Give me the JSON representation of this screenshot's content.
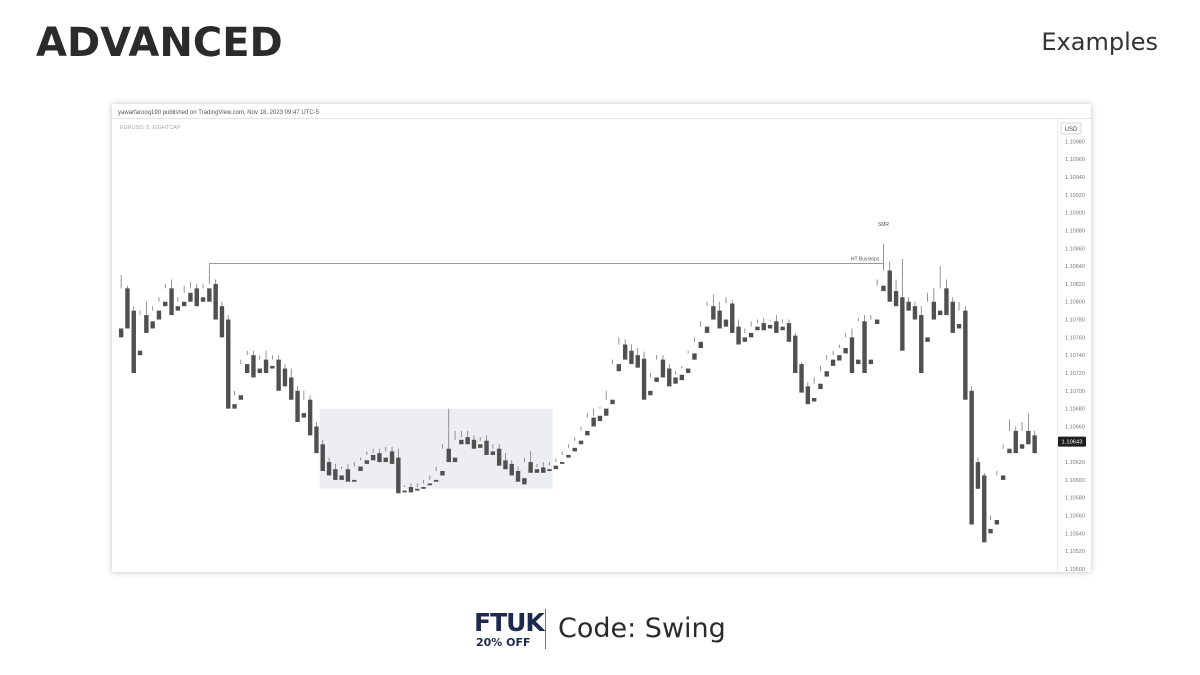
{
  "header": {
    "title": "ADVANCED",
    "subtitle": "Examples"
  },
  "chart": {
    "published_line": "yawarfarooq190 published on TradingView.com, Nov 18, 2023 09:47 UTC-5",
    "symbol_line": "EURUSD, 5, EIGHTCAP",
    "currency": "USD",
    "last_price": "1.10643",
    "annotations": {
      "level_top": "SMR",
      "level_line": "HT Buystops"
    }
  },
  "chart_data": {
    "type": "candlestick",
    "y_ticks": [
      1.1098,
      1.1096,
      1.1094,
      1.1092,
      1.109,
      1.1088,
      1.1086,
      1.1084,
      1.1082,
      1.108,
      1.1078,
      1.1076,
      1.1074,
      1.1072,
      1.107,
      1.1068,
      1.1066,
      1.1064,
      1.1062,
      1.106,
      1.1058,
      1.1056,
      1.1054,
      1.1052,
      1.105
    ],
    "ylim": [
      1.105,
      1.10995
    ],
    "last_price": 1.10643,
    "buystops_level": 1.10843,
    "highlight_zone": {
      "from_index": 32,
      "to_index": 68,
      "low": 1.1059,
      "high": 1.1068
    },
    "colors": {
      "up": "#5b9e8e",
      "down": "#505050",
      "wick": "#7a7a7a",
      "zone": "#eceef3"
    },
    "candles": [
      [
        1.1077,
        1.1083,
        1.10815,
        1.1076
      ],
      [
        1.10815,
        1.10818,
        1.1079,
        1.1077
      ],
      [
        1.1079,
        1.10795,
        1.10745,
        1.1072
      ],
      [
        1.10745,
        1.1079,
        1.10785,
        1.1074
      ],
      [
        1.10785,
        1.108,
        1.10778,
        1.10765
      ],
      [
        1.10778,
        1.10795,
        1.1079,
        1.1077
      ],
      [
        1.1079,
        1.10805,
        1.108,
        1.1078
      ],
      [
        1.108,
        1.1082,
        1.10815,
        1.10795
      ],
      [
        1.10815,
        1.10825,
        1.10795,
        1.10785
      ],
      [
        1.10795,
        1.10805,
        1.108,
        1.1079
      ],
      [
        1.108,
        1.10818,
        1.1081,
        1.10795
      ],
      [
        1.1081,
        1.10822,
        1.10815,
        1.108
      ],
      [
        1.10815,
        1.1082,
        1.10805,
        1.10795
      ],
      [
        1.10805,
        1.1082,
        1.10815,
        1.108
      ],
      [
        1.10815,
        1.1084,
        1.1082,
        1.108
      ],
      [
        1.1082,
        1.10825,
        1.10795,
        1.1078
      ],
      [
        1.10795,
        1.108,
        1.1078,
        1.1076
      ],
      [
        1.1078,
        1.10785,
        1.10685,
        1.1068
      ],
      [
        1.10685,
        1.107,
        1.10695,
        1.1068
      ],
      [
        1.10695,
        1.10735,
        1.1073,
        1.1069
      ],
      [
        1.1073,
        1.10745,
        1.1074,
        1.1072
      ],
      [
        1.1074,
        1.10745,
        1.10725,
        1.10715
      ],
      [
        1.10725,
        1.1074,
        1.10735,
        1.1072
      ],
      [
        1.10735,
        1.10745,
        1.10728,
        1.1072
      ],
      [
        1.10728,
        1.1074,
        1.10735,
        1.10725
      ],
      [
        1.10735,
        1.1074,
        1.10725,
        1.107
      ],
      [
        1.10725,
        1.1073,
        1.10715,
        1.10705
      ],
      [
        1.10715,
        1.10725,
        1.107,
        1.1069
      ],
      [
        1.107,
        1.10705,
        1.10675,
        1.10665
      ],
      [
        1.10675,
        1.107,
        1.1069,
        1.1067
      ],
      [
        1.1069,
        1.10695,
        1.1066,
        1.1065
      ],
      [
        1.1066,
        1.10665,
        1.1064,
        1.1063
      ],
      [
        1.1064,
        1.10645,
        1.1062,
        1.1061
      ],
      [
        1.1062,
        1.10625,
        1.10612,
        1.10605
      ],
      [
        1.10612,
        1.10618,
        1.10605,
        1.106
      ],
      [
        1.10605,
        1.10615,
        1.10612,
        1.106
      ],
      [
        1.10612,
        1.10618,
        1.106,
        1.10598
      ],
      [
        1.106,
        1.1062,
        1.10615,
        1.10598
      ],
      [
        1.10615,
        1.10625,
        1.10622,
        1.1061
      ],
      [
        1.10622,
        1.10632,
        1.10628,
        1.10618
      ],
      [
        1.10628,
        1.10635,
        1.1063,
        1.10622
      ],
      [
        1.1063,
        1.10635,
        1.10625,
        1.1062
      ],
      [
        1.10625,
        1.10637,
        1.10632,
        1.1062
      ],
      [
        1.10632,
        1.10637,
        1.10625,
        1.10618
      ],
      [
        1.10625,
        1.10635,
        1.10588,
        1.10585
      ],
      [
        1.10588,
        1.10594,
        1.10592,
        1.10586
      ],
      [
        1.10592,
        1.10596,
        1.1059,
        1.10586
      ],
      [
        1.1059,
        1.10596,
        1.10592,
        1.10588
      ],
      [
        1.10592,
        1.106,
        1.10596,
        1.1059
      ],
      [
        1.10596,
        1.10605,
        1.106,
        1.10594
      ],
      [
        1.106,
        1.10615,
        1.1061,
        1.10598
      ],
      [
        1.1061,
        1.1064,
        1.10635,
        1.10605
      ],
      [
        1.10635,
        1.1068,
        1.10625,
        1.1062
      ],
      [
        1.10625,
        1.10655,
        1.10645,
        1.1062
      ],
      [
        1.10645,
        1.10655,
        1.10648,
        1.1064
      ],
      [
        1.10648,
        1.10655,
        1.10645,
        1.1064
      ],
      [
        1.10645,
        1.1065,
        1.1064,
        1.10635
      ],
      [
        1.1064,
        1.10648,
        1.10644,
        1.10636
      ],
      [
        1.10644,
        1.1065,
        1.10632,
        1.10628
      ],
      [
        1.10632,
        1.1064,
        1.10635,
        1.10628
      ],
      [
        1.10635,
        1.1064,
        1.10622,
        1.10616
      ],
      [
        1.10622,
        1.1063,
        1.10618,
        1.10612
      ],
      [
        1.10618,
        1.10622,
        1.1061,
        1.10605
      ],
      [
        1.1061,
        1.10615,
        1.10602,
        1.10598
      ],
      [
        1.10602,
        1.10625,
        1.1062,
        1.10595
      ],
      [
        1.1062,
        1.10632,
        1.10612,
        1.10608
      ],
      [
        1.10612,
        1.10618,
        1.10614,
        1.10608
      ],
      [
        1.10614,
        1.1062,
        1.10612,
        1.10608
      ],
      [
        1.10612,
        1.1062,
        1.10616,
        1.1061
      ],
      [
        1.10616,
        1.10624,
        1.1062,
        1.10612
      ],
      [
        1.1062,
        1.10632,
        1.10628,
        1.10618
      ],
      [
        1.10628,
        1.1064,
        1.10636,
        1.10625
      ],
      [
        1.10636,
        1.10648,
        1.10644,
        1.10632
      ],
      [
        1.10644,
        1.1066,
        1.10655,
        1.1064
      ],
      [
        1.10655,
        1.10675,
        1.1067,
        1.1065
      ],
      [
        1.1067,
        1.1068,
        1.10672,
        1.1066
      ],
      [
        1.10672,
        1.10682,
        1.1068,
        1.10666
      ],
      [
        1.1068,
        1.107,
        1.1069,
        1.10672
      ],
      [
        1.1069,
        1.10735,
        1.1073,
        1.10685
      ],
      [
        1.1073,
        1.1076,
        1.10752,
        1.10722
      ],
      [
        1.10752,
        1.10758,
        1.10745,
        1.10735
      ],
      [
        1.10745,
        1.10752,
        1.1074,
        1.1073
      ],
      [
        1.1074,
        1.10748,
        1.10736,
        1.10726
      ],
      [
        1.10736,
        1.10744,
        1.107,
        1.1069
      ],
      [
        1.107,
        1.1072,
        1.10715,
        1.10695
      ],
      [
        1.10715,
        1.1074,
        1.10735,
        1.1071
      ],
      [
        1.10735,
        1.1074,
        1.10725,
        1.10715
      ],
      [
        1.10725,
        1.1073,
        1.10715,
        1.10705
      ],
      [
        1.10715,
        1.10722,
        1.10718,
        1.10708
      ],
      [
        1.10718,
        1.10728,
        1.10725,
        1.10712
      ],
      [
        1.10725,
        1.10745,
        1.10742,
        1.1072
      ],
      [
        1.10742,
        1.1076,
        1.10755,
        1.10735
      ],
      [
        1.10755,
        1.10778,
        1.10772,
        1.10748
      ],
      [
        1.10772,
        1.108,
        1.10795,
        1.10765
      ],
      [
        1.10795,
        1.10808,
        1.1079,
        1.1078
      ],
      [
        1.1079,
        1.108,
        1.1078,
        1.1077
      ],
      [
        1.1078,
        1.10805,
        1.10798,
        1.10772
      ],
      [
        1.10798,
        1.10802,
        1.10772,
        1.10765
      ],
      [
        1.10772,
        1.1078,
        1.1076,
        1.10752
      ],
      [
        1.1076,
        1.1077,
        1.10765,
        1.10755
      ],
      [
        1.10765,
        1.10778,
        1.10772,
        1.1076
      ],
      [
        1.10772,
        1.1078,
        1.10776,
        1.10768
      ],
      [
        1.10776,
        1.10782,
        1.10774,
        1.10768
      ],
      [
        1.10774,
        1.1078,
        1.10778,
        1.1077
      ],
      [
        1.10778,
        1.10785,
        1.10772,
        1.10765
      ],
      [
        1.10772,
        1.1078,
        1.10776,
        1.10768
      ],
      [
        1.10776,
        1.1078,
        1.10762,
        1.10755
      ],
      [
        1.10762,
        1.10765,
        1.1073,
        1.1072
      ],
      [
        1.1073,
        1.10732,
        1.10705,
        1.10698
      ],
      [
        1.10705,
        1.1071,
        1.10692,
        1.10685
      ],
      [
        1.10692,
        1.10715,
        1.10708,
        1.10688
      ],
      [
        1.10708,
        1.10728,
        1.10722,
        1.10702
      ],
      [
        1.10722,
        1.1074,
        1.10735,
        1.10716
      ],
      [
        1.10735,
        1.10745,
        1.1074,
        1.10728
      ],
      [
        1.1074,
        1.10752,
        1.10748,
        1.10734
      ],
      [
        1.10748,
        1.10765,
        1.1076,
        1.10742
      ],
      [
        1.1076,
        1.1077,
        1.10735,
        1.1072
      ],
      [
        1.10735,
        1.10782,
        1.10778,
        1.1073
      ],
      [
        1.10778,
        1.10785,
        1.10735,
        1.1072
      ],
      [
        1.10735,
        1.10785,
        1.1078,
        1.1073
      ],
      [
        1.1078,
        1.10825,
        1.10818,
        1.10775
      ],
      [
        1.10818,
        1.10865,
        1.10835,
        1.10812
      ],
      [
        1.10835,
        1.10845,
        1.10812,
        1.108
      ],
      [
        1.10812,
        1.10825,
        1.10805,
        1.10795
      ],
      [
        1.10805,
        1.10848,
        1.108,
        1.10745
      ],
      [
        1.108,
        1.10805,
        1.10795,
        1.1079
      ],
      [
        1.10795,
        1.108,
        1.10785,
        1.1078
      ],
      [
        1.10785,
        1.10795,
        1.1076,
        1.1072
      ],
      [
        1.1076,
        1.1081,
        1.108,
        1.10755
      ],
      [
        1.108,
        1.10815,
        1.1079,
        1.1078
      ],
      [
        1.1079,
        1.1084,
        1.10815,
        1.10785
      ],
      [
        1.10815,
        1.10825,
        1.108,
        1.10785
      ],
      [
        1.108,
        1.10805,
        1.10775,
        1.10765
      ],
      [
        1.10775,
        1.108,
        1.1079,
        1.1077
      ],
      [
        1.1079,
        1.10795,
        1.107,
        1.1069
      ],
      [
        1.107,
        1.10705,
        1.1062,
        1.1055
      ],
      [
        1.1062,
        1.10625,
        1.10605,
        1.1059
      ],
      [
        1.10605,
        1.10608,
        1.10545,
        1.1053
      ],
      [
        1.10545,
        1.1056,
        1.10555,
        1.1054
      ],
      [
        1.10555,
        1.1061,
        1.10605,
        1.1055
      ],
      [
        1.10605,
        1.1064,
        1.10635,
        1.106
      ],
      [
        1.10635,
        1.10668,
        1.10655,
        1.1063
      ],
      [
        1.10655,
        1.1066,
        1.1064,
        1.1063
      ],
      [
        1.1064,
        1.10665,
        1.10655,
        1.10635
      ],
      [
        1.10655,
        1.10675,
        1.1065,
        1.1064
      ],
      [
        1.1065,
        1.10655,
        1.10643,
        1.1063
      ]
    ]
  },
  "footer": {
    "logo": "FTUK",
    "logo_sub": "20% OFF",
    "code": "Code: Swing"
  }
}
